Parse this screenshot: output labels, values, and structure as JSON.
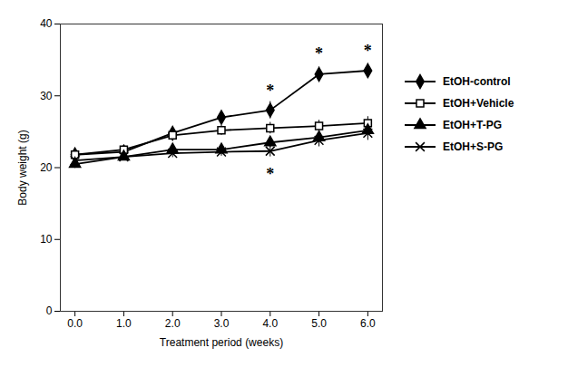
{
  "chart_data": {
    "type": "line",
    "x": [
      0,
      1,
      2,
      3,
      4,
      5,
      6
    ],
    "series": [
      {
        "name": "EtOH-control",
        "color": "#000000",
        "marker": "diamond",
        "values": [
          21.8,
          22.2,
          24.8,
          27.0,
          28.0,
          33.0,
          33.5
        ],
        "errors": [
          0.5,
          0.6,
          0.8,
          0.9,
          1.2,
          1.0,
          1.0
        ]
      },
      {
        "name": "EtOH+Vehicle",
        "color": "#000000",
        "marker": "square-open",
        "values": [
          21.8,
          22.5,
          24.5,
          25.2,
          25.5,
          25.8,
          26.2
        ],
        "errors": [
          0.5,
          0.5,
          0.7,
          0.7,
          0.8,
          0.8,
          0.9
        ]
      },
      {
        "name": "EtOH+T-PG",
        "color": "#000000",
        "marker": "triangle",
        "values": [
          20.5,
          21.5,
          22.5,
          22.5,
          23.5,
          24.2,
          25.2
        ],
        "errors": [
          0.6,
          0.5,
          0.6,
          0.6,
          0.7,
          0.8,
          0.8
        ]
      },
      {
        "name": "EtOH+S-PG",
        "color": "#000000",
        "marker": "x",
        "values": [
          21.0,
          21.5,
          22.0,
          22.2,
          22.3,
          23.8,
          24.8
        ],
        "errors": [
          0.5,
          0.5,
          0.6,
          0.6,
          0.8,
          0.9,
          1.0
        ]
      }
    ],
    "annotations": [
      {
        "x": 4,
        "y": 30.0,
        "text": "*"
      },
      {
        "x": 4,
        "y": 20.0,
        "text": "*"
      },
      {
        "x": 5,
        "y": 35.2,
        "text": "*"
      },
      {
        "x": 6,
        "y": 35.5,
        "text": "*"
      }
    ],
    "xlabel": "Treatment period (weeks)",
    "ylabel": "Body weight (g)",
    "xlim": [
      -0.3,
      6.3
    ],
    "ylim": [
      0,
      40
    ],
    "xticks": [
      0,
      1,
      2,
      3,
      4,
      5,
      6
    ],
    "yticks": [
      0,
      10,
      20,
      30,
      40
    ],
    "grid": false,
    "legend": "right"
  }
}
